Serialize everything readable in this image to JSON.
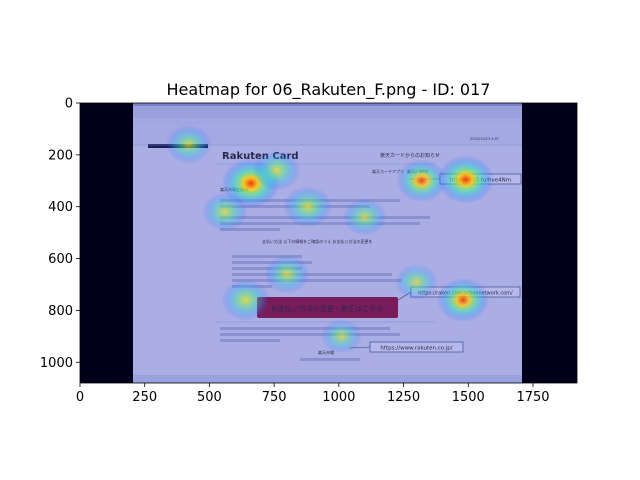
{
  "chart_data": {
    "type": "heatmap",
    "title": "Heatmap for 06_Rakuten_F.png - ID: 017",
    "xlabel": "",
    "ylabel": "",
    "xlim": [
      0,
      1920
    ],
    "ylim": [
      1080,
      0
    ],
    "x_ticks": [
      0,
      250,
      500,
      750,
      1000,
      1250,
      1500,
      1750
    ],
    "y_ticks": [
      0,
      200,
      400,
      600,
      800,
      1000
    ],
    "grid": false,
    "colormap": "jet",
    "background_color": "#00001a",
    "hotspots": [
      {
        "x": 420,
        "y": 160,
        "intensity": 0.55
      },
      {
        "x": 660,
        "y": 310,
        "intensity": 0.95
      },
      {
        "x": 760,
        "y": 260,
        "intensity": 0.6
      },
      {
        "x": 560,
        "y": 420,
        "intensity": 0.55
      },
      {
        "x": 880,
        "y": 400,
        "intensity": 0.65
      },
      {
        "x": 1100,
        "y": 440,
        "intensity": 0.5
      },
      {
        "x": 1320,
        "y": 300,
        "intensity": 0.7
      },
      {
        "x": 1490,
        "y": 295,
        "intensity": 0.9
      },
      {
        "x": 800,
        "y": 660,
        "intensity": 0.55
      },
      {
        "x": 640,
        "y": 760,
        "intensity": 0.65
      },
      {
        "x": 1480,
        "y": 760,
        "intensity": 0.75
      },
      {
        "x": 1300,
        "y": 690,
        "intensity": 0.45
      },
      {
        "x": 1010,
        "y": 900,
        "intensity": 0.4
      }
    ]
  },
  "email": {
    "brand": "Rakuten Card",
    "heading": "楽天カードからのお知らせ",
    "app_label": "楽天カードアプリ",
    "app_link_label": "楽天e-NAVI",
    "link1": "https://r10.to/hve4Nm",
    "link2": "https://raken.civicactionnetwork.com/",
    "link3": "https://www.rakuten.co.jp/",
    "button_label": "お支払い方法の変更・修正はこちら",
    "greeting": "楽天市場会員様",
    "notice": "支払い方法 以下の情報をご確認のうえ お支払い方法の変更を",
    "signature": "楽天市場",
    "date": "2020/10/23 4:07"
  }
}
